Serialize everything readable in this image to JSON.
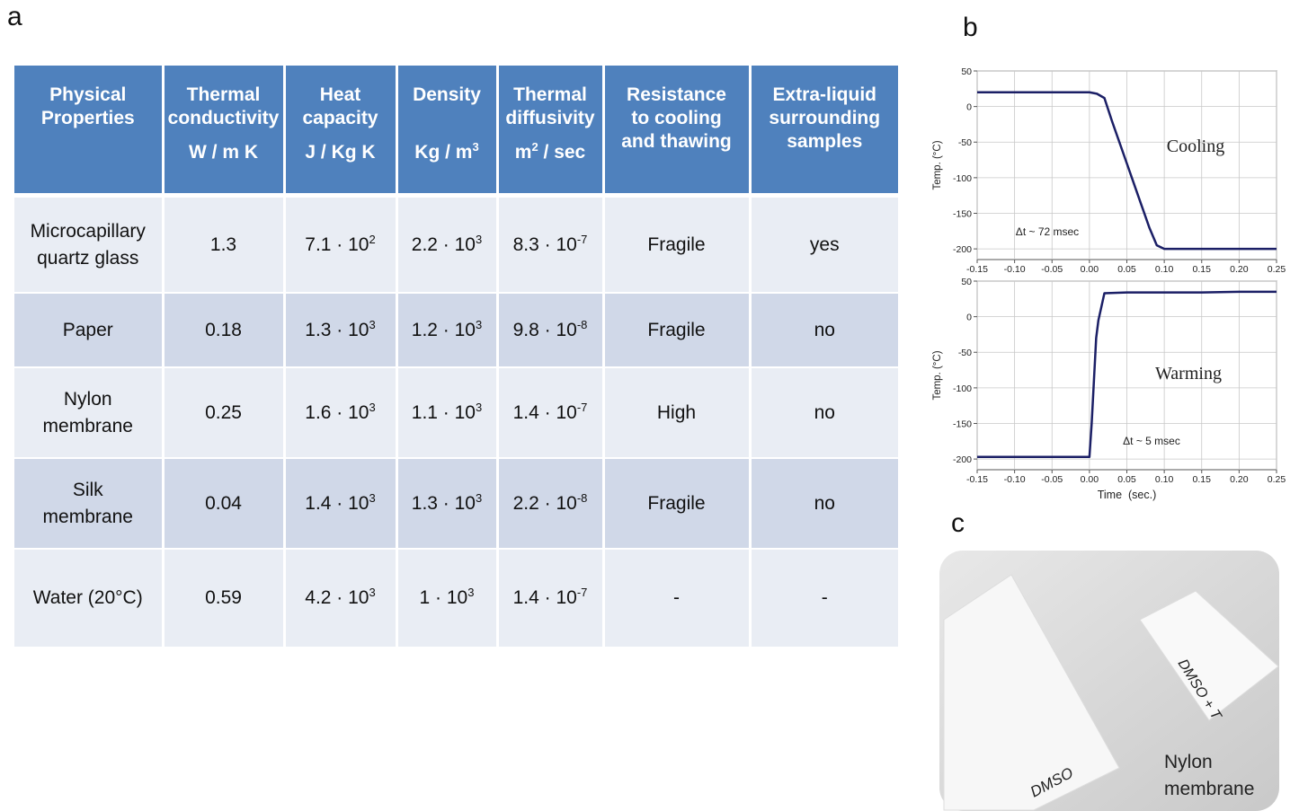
{
  "panel_labels": {
    "a": "a",
    "b": "b",
    "c": "c"
  },
  "table": {
    "header": [
      {
        "lines": [
          "Physical",
          "Properties"
        ]
      },
      {
        "lines": [
          "Thermal",
          "conductivity"
        ],
        "unit": [
          "W / m K"
        ]
      },
      {
        "lines": [
          "Heat",
          "capacity"
        ],
        "unit": [
          "J / Kg K"
        ]
      },
      {
        "lines": [
          "Density"
        ],
        "unit": [
          "Kg / m",
          {
            "sup": "3"
          }
        ]
      },
      {
        "lines": [
          "Thermal",
          "diffusivity"
        ],
        "unit": [
          "m",
          {
            "sup": "2"
          },
          " / sec"
        ]
      },
      {
        "lines": [
          "Resistance",
          "to cooling",
          "and thawing"
        ]
      },
      {
        "lines": [
          "Extra-liquid",
          "surrounding",
          "samples"
        ]
      }
    ],
    "rows": [
      [
        {
          "lines": [
            "Microcapillary",
            "quartz glass"
          ]
        },
        [
          "1.3"
        ],
        [
          "7.1 · 10",
          {
            "sup": "2"
          }
        ],
        [
          "2.2 · 10",
          {
            "sup": "3"
          }
        ],
        [
          "8.3 · 10",
          {
            "sup": "-7"
          }
        ],
        [
          "Fragile"
        ],
        [
          "yes"
        ]
      ],
      [
        {
          "lines": [
            "Paper"
          ]
        },
        [
          "0.18"
        ],
        [
          "1.3 · 10",
          {
            "sup": "3"
          }
        ],
        [
          "1.2 · 10",
          {
            "sup": "3"
          }
        ],
        [
          "9.8 · 10",
          {
            "sup": "-8"
          }
        ],
        [
          "Fragile"
        ],
        [
          "no"
        ]
      ],
      [
        {
          "lines": [
            "Nylon",
            "membrane"
          ]
        },
        [
          "0.25"
        ],
        [
          "1.6 · 10",
          {
            "sup": "3"
          }
        ],
        [
          "1.1 · 10",
          {
            "sup": "3"
          }
        ],
        [
          "1.4 · 10",
          {
            "sup": "-7"
          }
        ],
        [
          "High"
        ],
        [
          "no"
        ]
      ],
      [
        {
          "lines": [
            "Silk",
            "membrane"
          ]
        },
        [
          "0.04"
        ],
        [
          "1.4 · 10",
          {
            "sup": "3"
          }
        ],
        [
          "1.3 · 10",
          {
            "sup": "3"
          }
        ],
        [
          "2.2 · 10",
          {
            "sup": "-8"
          }
        ],
        [
          "Fragile"
        ],
        [
          "no"
        ]
      ],
      [
        {
          "lines": [
            "Water (20°C)"
          ]
        },
        [
          "0.59"
        ],
        [
          "4.2 · 10",
          {
            "sup": "3"
          }
        ],
        [
          "1 · 10",
          {
            "sup": "3"
          }
        ],
        [
          "1.4 · 10",
          {
            "sup": "-7"
          }
        ],
        [
          "-"
        ],
        [
          "-"
        ]
      ]
    ]
  },
  "chart_data": [
    {
      "type": "line",
      "ylabel": "Temp. (°C)",
      "annotations": [
        "Cooling",
        "Δt ~ 72 msec"
      ],
      "x": [
        -0.15,
        -0.1,
        -0.05,
        0,
        0.01,
        0.02,
        0.03,
        0.04,
        0.05,
        0.06,
        0.07,
        0.08,
        0.09,
        0.1,
        0.15,
        0.2,
        0.25
      ],
      "series": [
        {
          "color": "#1b1f66",
          "values": [
            20,
            20,
            20,
            20,
            18,
            12,
            -20,
            -50,
            -80,
            -110,
            -140,
            -170,
            -195,
            -200,
            -200,
            -200,
            -200
          ]
        }
      ],
      "xlim": [
        -0.15,
        0.25
      ],
      "ylim": [
        -215,
        50
      ],
      "xticks": [
        -0.15,
        {
          "value": -0.1,
          "label": "-0.10"
        },
        -0.05,
        {
          "value": 0,
          "label": "0.00"
        },
        0.05,
        {
          "value": 0.1,
          "label": "0.10"
        },
        0.15,
        {
          "value": 0.2,
          "label": "0.20"
        },
        0.25
      ],
      "yticks": [
        50,
        0,
        -50,
        -100,
        -150,
        -200
      ],
      "grid": true
    },
    {
      "type": "line",
      "ylabel": "Temp. (°C)",
      "xlabel": "Time  (sec.)",
      "annotations": [
        "Warming",
        "Δt ~ 5 msec"
      ],
      "x": [
        -0.15,
        -0.1,
        -0.05,
        0,
        0.003,
        0.006,
        0.009,
        0.012,
        0.02,
        0.05,
        0.1,
        0.15,
        0.2,
        0.25
      ],
      "series": [
        {
          "color": "#1b1f66",
          "values": [
            -197,
            -197,
            -197,
            -197,
            -150,
            -90,
            -30,
            -5,
            33,
            34,
            34,
            34,
            35,
            35
          ]
        }
      ],
      "xlim": [
        -0.15,
        0.25
      ],
      "ylim": [
        -215,
        50
      ],
      "xticks": [
        -0.15,
        {
          "value": -0.1,
          "label": "-0.10"
        },
        -0.05,
        {
          "value": 0,
          "label": "0.00"
        },
        0.05,
        {
          "value": 0.1,
          "label": "0.10"
        },
        0.15,
        {
          "value": 0.2,
          "label": "0.20"
        },
        0.25
      ],
      "yticks": [
        50,
        0,
        -50,
        -100,
        -150,
        -200
      ],
      "grid": true
    }
  ],
  "photo": {
    "handwriting": [
      "DMSO",
      "DMSO + T"
    ],
    "caption": [
      "Nylon",
      "membrane"
    ]
  }
}
